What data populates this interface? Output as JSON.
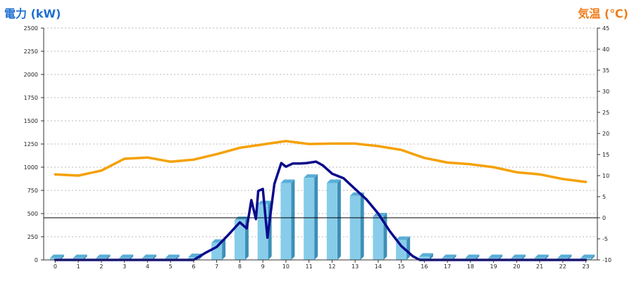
{
  "chart_data": {
    "type": "bar",
    "left_axis_label": "電力 (kW)",
    "right_axis_label": "気温 (℃)",
    "categories": [
      "0",
      "1",
      "2",
      "3",
      "4",
      "5",
      "6",
      "7",
      "8",
      "9",
      "10",
      "11",
      "12",
      "13",
      "14",
      "15",
      "16",
      "17",
      "18",
      "19",
      "20",
      "21",
      "22",
      "23"
    ],
    "left_ylim": [
      0,
      2500
    ],
    "left_ticks": [
      0,
      250,
      500,
      750,
      1000,
      1250,
      1500,
      1750,
      2000,
      2250,
      2500
    ],
    "right_ylim": [
      -10,
      45
    ],
    "right_ticks": [
      -10,
      -5,
      0,
      5,
      10,
      15,
      20,
      25,
      30,
      35,
      40,
      45
    ],
    "grid": "horizontal dotted",
    "series": [
      {
        "kind": "bar",
        "axis": "left",
        "color": "#87cdea",
        "values": [
          20,
          20,
          20,
          20,
          20,
          20,
          30,
          185,
          430,
          600,
          830,
          885,
          830,
          690,
          470,
          215,
          35,
          20,
          20,
          20,
          20,
          20,
          20,
          20
        ]
      },
      {
        "kind": "line",
        "axis": "right",
        "color": "#f5a000",
        "x": [
          0,
          1,
          2,
          3,
          4,
          5,
          6,
          7,
          8,
          9,
          10,
          11,
          12,
          13,
          14,
          15,
          16,
          17,
          18,
          19,
          20,
          21,
          22,
          23
        ],
        "values": [
          10.3,
          10.0,
          11.2,
          14.0,
          14.3,
          13.3,
          13.8,
          15.1,
          16.6,
          17.4,
          18.2,
          17.5,
          17.6,
          17.6,
          17.0,
          16.1,
          14.2,
          13.1,
          12.7,
          12.0,
          10.8,
          10.3,
          9.2,
          8.5
        ]
      },
      {
        "kind": "line",
        "axis": "left",
        "color": "#0a0a8c",
        "x": [
          0,
          5,
          6,
          6.5,
          7,
          7.5,
          8,
          8.3,
          8.5,
          8.7,
          8.8,
          9.0,
          9.2,
          9.5,
          9.8,
          10.0,
          10.3,
          10.6,
          10.9,
          11.3,
          11.6,
          12.0,
          12.5,
          13.0,
          13.5,
          14.0,
          14.5,
          15.0,
          15.5,
          15.8,
          16.0,
          17,
          20,
          23
        ],
        "values": [
          0,
          0,
          0,
          75,
          140,
          270,
          405,
          340,
          645,
          440,
          745,
          765,
          240,
          820,
          1045,
          1005,
          1040,
          1040,
          1045,
          1060,
          1020,
          930,
          880,
          765,
          650,
          500,
          310,
          150,
          40,
          0,
          0,
          0,
          0,
          0
        ]
      }
    ],
    "reference_line": {
      "axis": "right",
      "value": 0,
      "color": "#000000"
    }
  }
}
